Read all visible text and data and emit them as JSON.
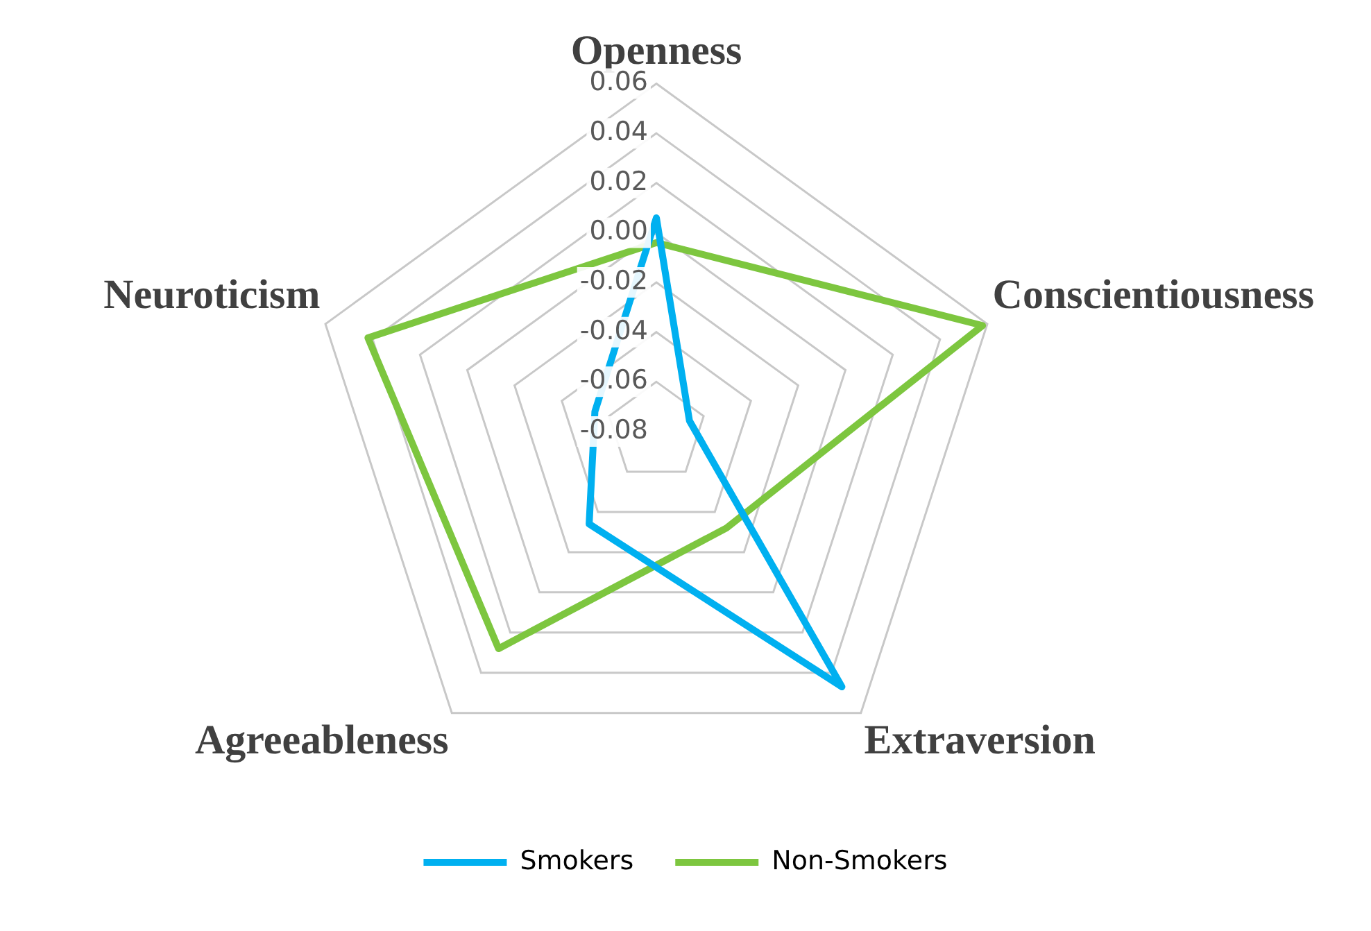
{
  "chart_data": {
    "type": "radar",
    "categories": [
      "Openness",
      "Conscientiousness",
      "Extraversion",
      "Agreeableness",
      "Neuroticism"
    ],
    "series": [
      {
        "name": "Smokers",
        "color": "#00b0f0",
        "values": [
          0.006,
          -0.066,
          0.047,
          -0.034,
          -0.054
        ]
      },
      {
        "name": "Non-Smokers",
        "color": "#7dc63f",
        "values": [
          -0.004,
          0.058,
          -0.032,
          0.028,
          0.042
        ]
      }
    ],
    "ylim": [
      -0.08,
      0.06
    ],
    "yticks": [
      {
        "value": -0.08,
        "label": "-0.08"
      },
      {
        "value": -0.06,
        "label": "-0.06"
      },
      {
        "value": -0.04,
        "label": "-0.04"
      },
      {
        "value": -0.02,
        "label": "-0.02"
      },
      {
        "value": 0,
        "label": "0.00"
      },
      {
        "value": 0.02,
        "label": "0.02"
      },
      {
        "value": 0.04,
        "label": "0.04"
      },
      {
        "value": 0.06,
        "label": "0.06"
      }
    ],
    "grid": true,
    "legend": "bottom",
    "marker": "none",
    "line_style": "solid"
  }
}
